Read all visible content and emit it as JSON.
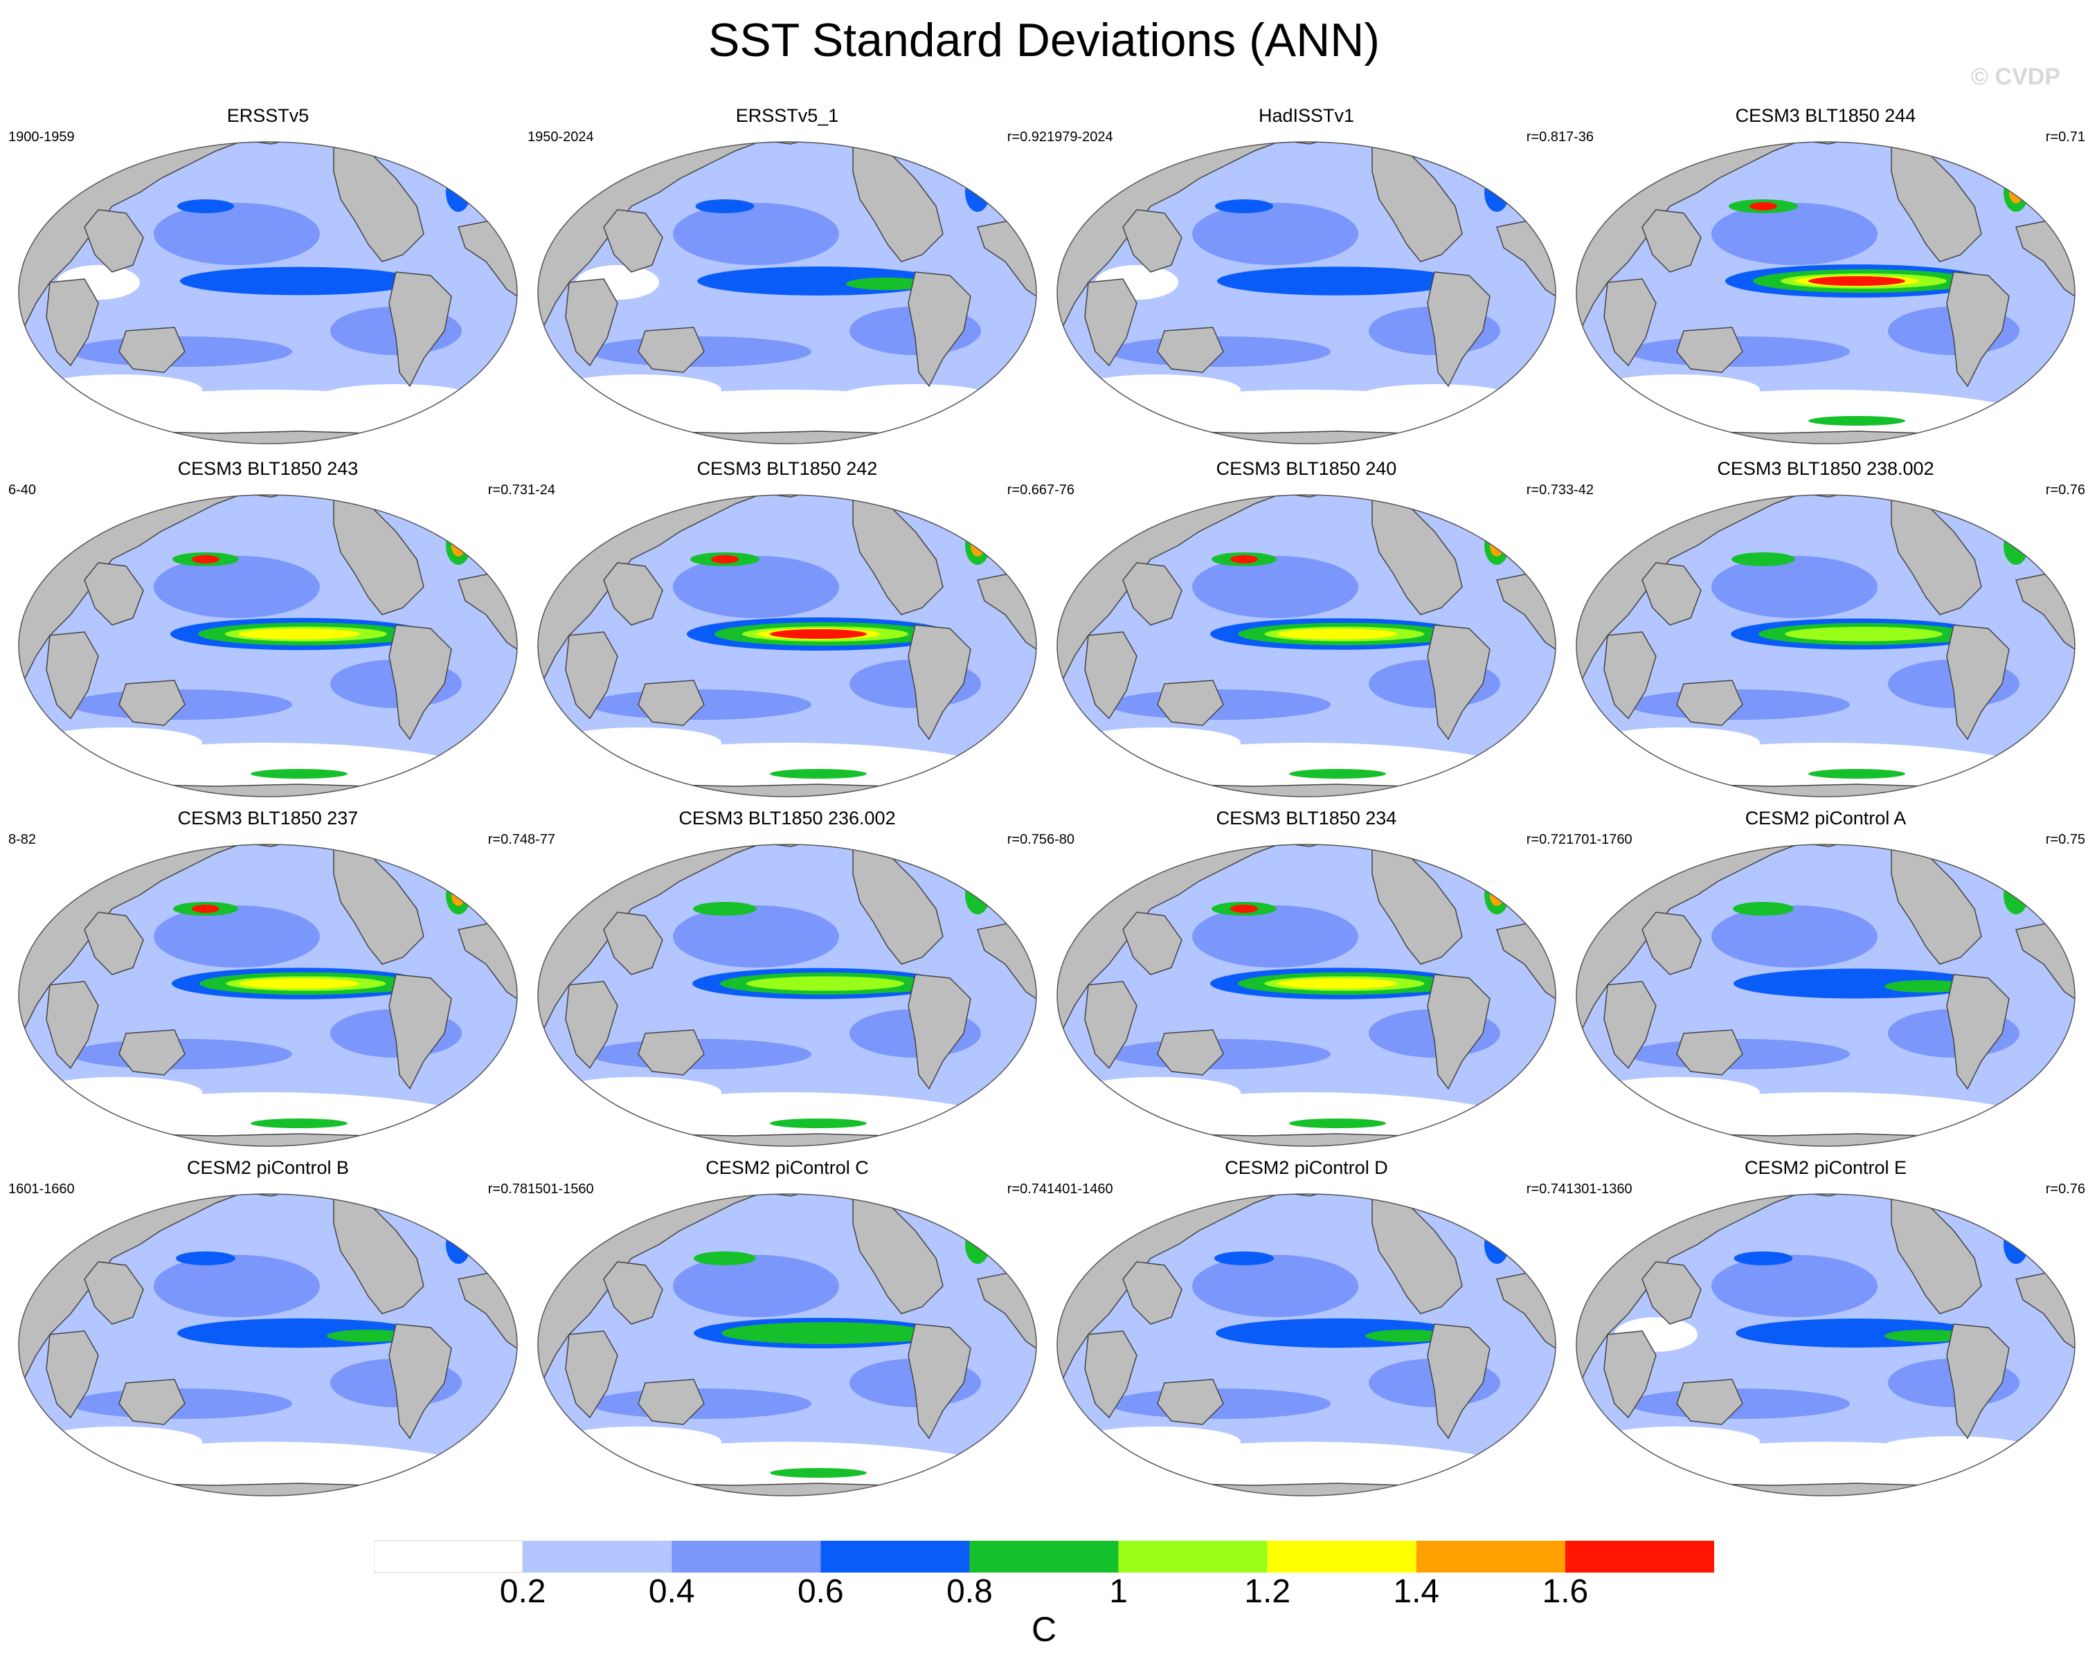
{
  "title": "SST Standard Deviations (ANN)",
  "watermark": "© CVDP",
  "colors": {
    "land": "#bdbdbd",
    "coast": "#444444",
    "bins": [
      "#ffffff",
      "#b3c6ff",
      "#7b97fb",
      "#0a5cf8",
      "#16c02a",
      "#99ff19",
      "#ffff00",
      "#ffa000",
      "#ff1500"
    ]
  },
  "panels": [
    {
      "title": "ERSSTv5",
      "period": "1900-1959",
      "r": "",
      "tropical_intensity": 0.55
    },
    {
      "title": "ERSSTv5_1",
      "period": "1950-2024",
      "r": "r=0.92",
      "tropical_intensity": 0.62
    },
    {
      "title": "HadISSTv1",
      "period": "1979-2024",
      "r": "r=0.81",
      "tropical_intensity": 0.6
    },
    {
      "title": "CESM3 BLT1850 244",
      "period": "7-36",
      "r": "r=0.71",
      "tropical_intensity": 1.0
    },
    {
      "title": "CESM3 BLT1850 243",
      "period": "6-40",
      "r": "r=0.73",
      "tropical_intensity": 0.9
    },
    {
      "title": "CESM3 BLT1850 242",
      "period": "1-24",
      "r": "r=0.66",
      "tropical_intensity": 1.0
    },
    {
      "title": "CESM3 BLT1850 240",
      "period": "7-76",
      "r": "r=0.73",
      "tropical_intensity": 0.85
    },
    {
      "title": "CESM3 BLT1850 238.002",
      "period": "3-42",
      "r": "r=0.76",
      "tropical_intensity": 0.8
    },
    {
      "title": "CESM3 BLT1850 237",
      "period": "8-82",
      "r": "r=0.74",
      "tropical_intensity": 0.85
    },
    {
      "title": "CESM3 BLT1850 236.002",
      "period": "8-77",
      "r": "r=0.75",
      "tropical_intensity": 0.8
    },
    {
      "title": "CESM3 BLT1850 234",
      "period": "6-80",
      "r": "r=0.72",
      "tropical_intensity": 0.85
    },
    {
      "title": "CESM2 piControl A",
      "period": "1701-1760",
      "r": "r=0.75",
      "tropical_intensity": 0.7
    },
    {
      "title": "CESM2 piControl B",
      "period": "1601-1660",
      "r": "r=0.78",
      "tropical_intensity": 0.65
    },
    {
      "title": "CESM2 piControl C",
      "period": "1501-1560",
      "r": "r=0.74",
      "tropical_intensity": 0.75
    },
    {
      "title": "CESM2 piControl D",
      "period": "1401-1460",
      "r": "r=0.74",
      "tropical_intensity": 0.65
    },
    {
      "title": "CESM2 piControl E",
      "period": "1301-1360",
      "r": "r=0.76",
      "tropical_intensity": 0.62
    }
  ],
  "colorbar": {
    "labels": [
      "0.2",
      "0.4",
      "0.6",
      "0.8",
      "1",
      "1.2",
      "1.4",
      "1.6"
    ],
    "units": "C"
  }
}
